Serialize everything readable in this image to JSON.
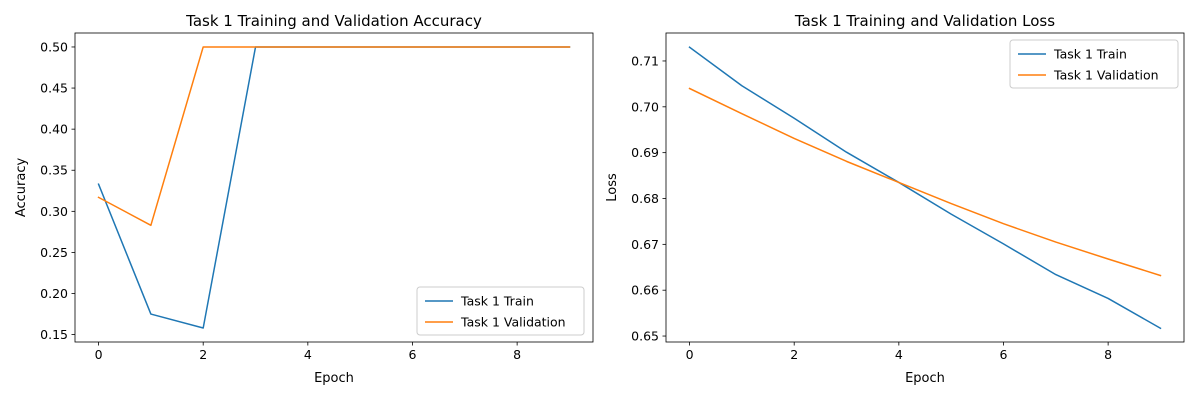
{
  "colors": {
    "train": "#1f77b4",
    "validation": "#ff7f0e"
  },
  "chart_data": [
    {
      "type": "line",
      "title": "Task 1 Training and Validation Accuracy",
      "xlabel": "Epoch",
      "ylabel": "Accuracy",
      "x": [
        0,
        1,
        2,
        3,
        4,
        5,
        6,
        7,
        8,
        9
      ],
      "xlim": [
        -0.45,
        9.45
      ],
      "ylim": [
        0.141,
        0.517
      ],
      "xticks": [
        0,
        2,
        4,
        6,
        8
      ],
      "yticks": [
        0.15,
        0.2,
        0.25,
        0.3,
        0.35,
        0.4,
        0.45,
        0.5
      ],
      "ytick_labels": [
        "0.15",
        "0.20",
        "0.25",
        "0.30",
        "0.35",
        "0.40",
        "0.45",
        "0.50"
      ],
      "grid": false,
      "legend_position": "bottom-right",
      "series": [
        {
          "name": "Task 1 Train",
          "color": "#1f77b4",
          "values": [
            0.333,
            0.175,
            0.158,
            0.5,
            0.5,
            0.5,
            0.5,
            0.5,
            0.5,
            0.5
          ]
        },
        {
          "name": "Task 1 Validation",
          "color": "#ff7f0e",
          "values": [
            0.317,
            0.283,
            0.5,
            0.5,
            0.5,
            0.5,
            0.5,
            0.5,
            0.5,
            0.5
          ]
        }
      ]
    },
    {
      "type": "line",
      "title": "Task 1 Training and Validation Loss",
      "xlabel": "Epoch",
      "ylabel": "Loss",
      "x": [
        0,
        1,
        2,
        3,
        4,
        5,
        6,
        7,
        8,
        9
      ],
      "xlim": [
        -0.45,
        9.45
      ],
      "ylim": [
        0.6487,
        0.7161
      ],
      "xticks": [
        0,
        2,
        4,
        6,
        8
      ],
      "yticks": [
        0.65,
        0.66,
        0.67,
        0.68,
        0.69,
        0.7,
        0.71
      ],
      "ytick_labels": [
        "0.65",
        "0.66",
        "0.67",
        "0.68",
        "0.69",
        "0.70",
        "0.71"
      ],
      "grid": false,
      "legend_position": "top-right",
      "series": [
        {
          "name": "Task 1 Train",
          "color": "#1f77b4",
          "values": [
            0.713,
            0.7046,
            0.6975,
            0.6901,
            0.6835,
            0.6766,
            0.6701,
            0.6634,
            0.6582,
            0.6517
          ]
        },
        {
          "name": "Task 1 Validation",
          "color": "#ff7f0e",
          "values": [
            0.704,
            0.6985,
            0.6931,
            0.6881,
            0.6835,
            0.6789,
            0.6745,
            0.6705,
            0.6668,
            0.6632
          ]
        }
      ]
    }
  ]
}
